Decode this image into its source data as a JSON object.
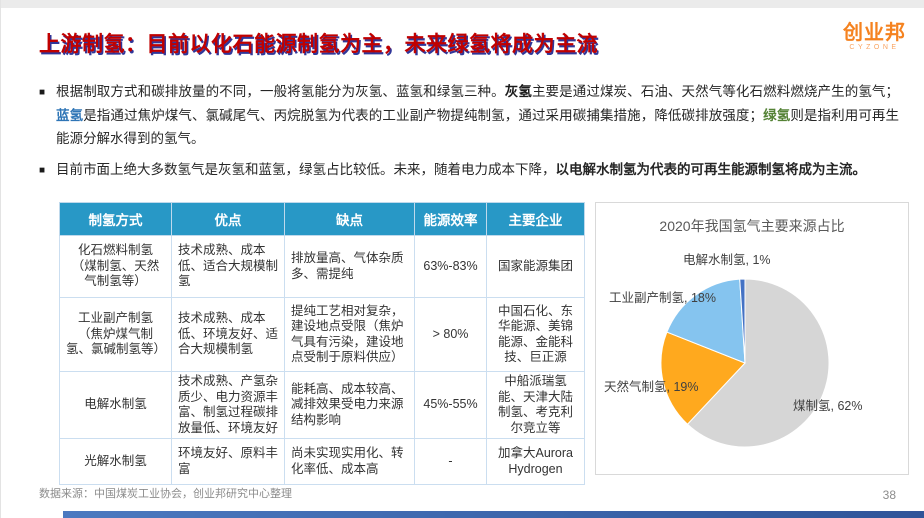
{
  "header": {
    "title": "上游制氢：目前以化石能源制氢为主，未来绿氢将成为主流",
    "logo_text": "创业邦",
    "logo_sub": "CYZONE"
  },
  "colors": {
    "title_red": "#C00000",
    "title_shadow_navy": "#303699",
    "table_header_bg": "#2898C6",
    "logo_orange": "#F5821F",
    "blue_hydrogen_term": "#2E75B6",
    "green_hydrogen_term": "#548235",
    "bottom_bar_blue": "#3E68B1"
  },
  "bullets": [
    {
      "marker": "■",
      "segments": [
        {
          "t": "根据制取方式和碳排放量的不同，一般将氢能分为灰氢、蓝氢和绿氢三种。",
          "b": false
        },
        {
          "t": "灰氢",
          "b": true,
          "c": "#1a1a1a"
        },
        {
          "t": "主要是通过煤炭、石油、天然气等化石燃料燃烧产生的氢气；",
          "b": false
        },
        {
          "t": "蓝氢",
          "b": true,
          "c": "#2E75B6"
        },
        {
          "t": "是指通过焦炉煤气、氯碱尾气、丙烷脱氢为代表的工业副产物提纯制氢，通过采用碳捕集措施，降低碳排放强度；",
          "b": false
        },
        {
          "t": "绿氢",
          "b": true,
          "c": "#548235"
        },
        {
          "t": "则是指利用可再生能源分解水得到的氢气。",
          "b": false
        }
      ]
    },
    {
      "marker": "■",
      "segments": [
        {
          "t": "目前市面上绝大多数氢气是灰氢和蓝氢，绿氢占比较低。未来，随着电力成本下降，",
          "b": false
        },
        {
          "t": "以电解水制氢为代表的可再生能源制氢将成为主流。",
          "b": true
        }
      ]
    }
  ],
  "table": {
    "headers": [
      "制氢方式",
      "优点",
      "缺点",
      "能源效率",
      "主要企业"
    ],
    "rows": [
      [
        "化石燃料制氢（煤制氢、天然气制氢等）",
        "技术成熟、成本低、适合大规模制氢",
        "排放量高、气体杂质多、需提纯",
        "63%-83%",
        "国家能源集团"
      ],
      [
        "工业副产制氢（焦炉煤气制氢、氯碱制氢等）",
        "技术成熟、成本低、环境友好、适合大规模制氢",
        "提纯工艺相对复杂，建设地点受限（焦炉气具有污染，建设地点受制于原料供应）",
        "> 80%",
        "中国石化、东华能源、美锦能源、金能科技、巨正源"
      ],
      [
        "电解水制氢",
        "技术成熟、产氢杂质少、电力资源丰富、制氢过程碳排放量低、环境友好",
        "能耗高、成本较高、减排效果受电力来源结构影响",
        "45%-55%",
        "中船派瑞氢能、天津大陆制氢、考克利尔竞立等"
      ],
      [
        "光解水制氢",
        "环境友好、原料丰富",
        "尚未实现实用化、转化率低、成本高",
        "-",
        "加拿大Aurora Hydrogen"
      ]
    ]
  },
  "chart_data": {
    "type": "pie",
    "title": "2020年我国氢气主要来源占比",
    "slices": [
      {
        "label": "煤制氢",
        "value": 62,
        "color": "#D6D6D6"
      },
      {
        "label": "天然气制氢",
        "value": 19,
        "color": "#FFA91E"
      },
      {
        "label": "工业副产制氢",
        "value": 18,
        "color": "#85C4EF"
      },
      {
        "label": "电解水制氢",
        "value": 1,
        "color": "#4472C4"
      }
    ],
    "label_format": "{label}, {value}%",
    "start_angle_deg": 0,
    "direction": "clockwise",
    "legend": "none"
  },
  "footer": {
    "source": "数据来源：中国煤炭工业协会，创业邦研究中心整理",
    "page_number": "38"
  }
}
